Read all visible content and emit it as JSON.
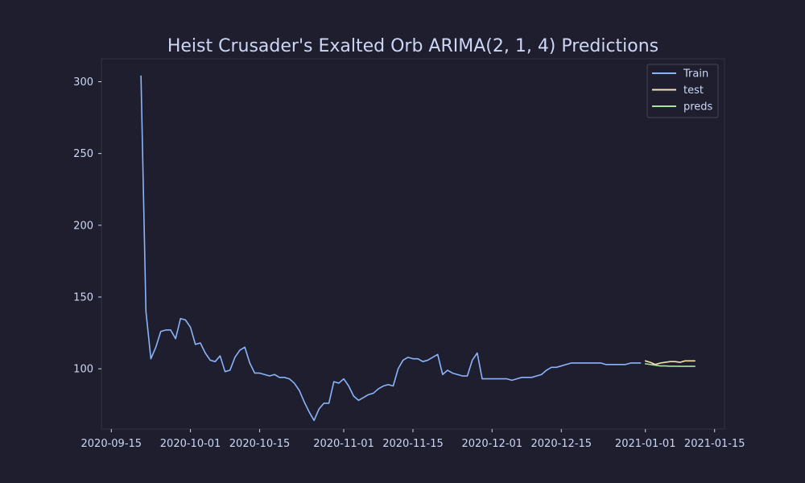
{
  "chart_data": {
    "type": "line",
    "title": "Heist Crusader's Exalted Orb ARIMA(2, 1, 4) Predictions",
    "xlabel": "",
    "ylabel": "",
    "xlim": [
      "2020-09-13",
      "2021-01-17"
    ],
    "ylim": [
      58,
      316
    ],
    "x_ticks": [
      "2020-09-15",
      "2020-10-01",
      "2020-10-15",
      "2020-11-01",
      "2020-11-15",
      "2020-12-01",
      "2020-12-15",
      "2021-01-01",
      "2021-01-15"
    ],
    "y_ticks": [
      100,
      150,
      200,
      250,
      300
    ],
    "grid": false,
    "legend_position": "top-right",
    "series": [
      {
        "name": "Train",
        "color": "#89b4fa",
        "x": [
          "2020-09-21",
          "2020-09-22",
          "2020-09-23",
          "2020-09-24",
          "2020-09-25",
          "2020-09-26",
          "2020-09-27",
          "2020-09-28",
          "2020-09-29",
          "2020-09-30",
          "2020-10-01",
          "2020-10-02",
          "2020-10-03",
          "2020-10-04",
          "2020-10-05",
          "2020-10-06",
          "2020-10-07",
          "2020-10-08",
          "2020-10-09",
          "2020-10-10",
          "2020-10-11",
          "2020-10-12",
          "2020-10-13",
          "2020-10-14",
          "2020-10-15",
          "2020-10-16",
          "2020-10-17",
          "2020-10-18",
          "2020-10-19",
          "2020-10-20",
          "2020-10-21",
          "2020-10-22",
          "2020-10-23",
          "2020-10-24",
          "2020-10-25",
          "2020-10-26",
          "2020-10-27",
          "2020-10-28",
          "2020-10-29",
          "2020-10-30",
          "2020-10-31",
          "2020-11-01",
          "2020-11-02",
          "2020-11-03",
          "2020-11-04",
          "2020-11-05",
          "2020-11-06",
          "2020-11-07",
          "2020-11-08",
          "2020-11-09",
          "2020-11-10",
          "2020-11-11",
          "2020-11-12",
          "2020-11-13",
          "2020-11-14",
          "2020-11-15",
          "2020-11-16",
          "2020-11-17",
          "2020-11-18",
          "2020-11-19",
          "2020-11-20",
          "2020-11-21",
          "2020-11-22",
          "2020-11-23",
          "2020-11-24",
          "2020-11-25",
          "2020-11-26",
          "2020-11-27",
          "2020-11-28",
          "2020-11-29",
          "2020-11-30",
          "2020-12-01",
          "2020-12-02",
          "2020-12-03",
          "2020-12-04",
          "2020-12-05",
          "2020-12-06",
          "2020-12-07",
          "2020-12-08",
          "2020-12-09",
          "2020-12-10",
          "2020-12-11",
          "2020-12-12",
          "2020-12-13",
          "2020-12-14",
          "2020-12-15",
          "2020-12-16",
          "2020-12-17",
          "2020-12-18",
          "2020-12-19",
          "2020-12-20",
          "2020-12-21",
          "2020-12-22",
          "2020-12-23",
          "2020-12-24",
          "2020-12-25",
          "2020-12-26",
          "2020-12-27",
          "2020-12-28",
          "2020-12-29",
          "2020-12-30",
          "2020-12-31"
        ],
        "values": [
          304,
          140,
          107,
          115,
          126,
          127,
          127,
          121,
          135,
          134,
          129,
          117,
          118,
          111,
          106,
          105,
          109,
          98,
          99,
          108,
          113,
          115,
          104,
          97,
          97,
          96,
          95,
          96,
          94,
          94,
          93,
          90,
          85,
          77,
          70,
          64,
          72,
          76,
          76,
          91,
          90,
          93,
          88,
          81,
          78,
          80,
          82,
          83,
          86,
          88,
          89,
          88,
          100,
          106,
          108,
          107,
          107,
          105,
          106,
          108,
          110,
          96,
          99,
          97,
          96,
          95,
          95,
          106,
          111,
          93,
          93,
          93,
          93,
          93,
          93,
          92,
          93,
          94,
          94,
          94,
          95,
          96,
          99,
          101,
          101,
          102,
          103,
          104,
          104,
          104,
          104,
          104,
          104,
          104,
          103,
          103,
          103,
          103,
          103,
          104,
          104,
          104
        ]
      },
      {
        "name": "test",
        "color": "#f9e2af",
        "x": [
          "2021-01-01",
          "2021-01-02",
          "2021-01-03",
          "2021-01-04",
          "2021-01-05",
          "2021-01-06",
          "2021-01-07",
          "2021-01-08",
          "2021-01-09",
          "2021-01-10",
          "2021-01-11"
        ],
        "values": [
          105.5,
          104.5,
          103,
          104,
          104.5,
          105,
          105,
          104.5,
          105.5,
          105.5,
          105.5
        ]
      },
      {
        "name": "preds",
        "color": "#a6e3a1",
        "x": [
          "2021-01-01",
          "2021-01-02",
          "2021-01-03",
          "2021-01-04",
          "2021-01-05",
          "2021-01-06",
          "2021-01-07",
          "2021-01-08",
          "2021-01-09",
          "2021-01-10",
          "2021-01-11"
        ],
        "values": [
          103.5,
          103,
          102.5,
          102,
          102,
          101.8,
          101.8,
          101.7,
          101.7,
          101.7,
          101.7
        ]
      }
    ]
  }
}
